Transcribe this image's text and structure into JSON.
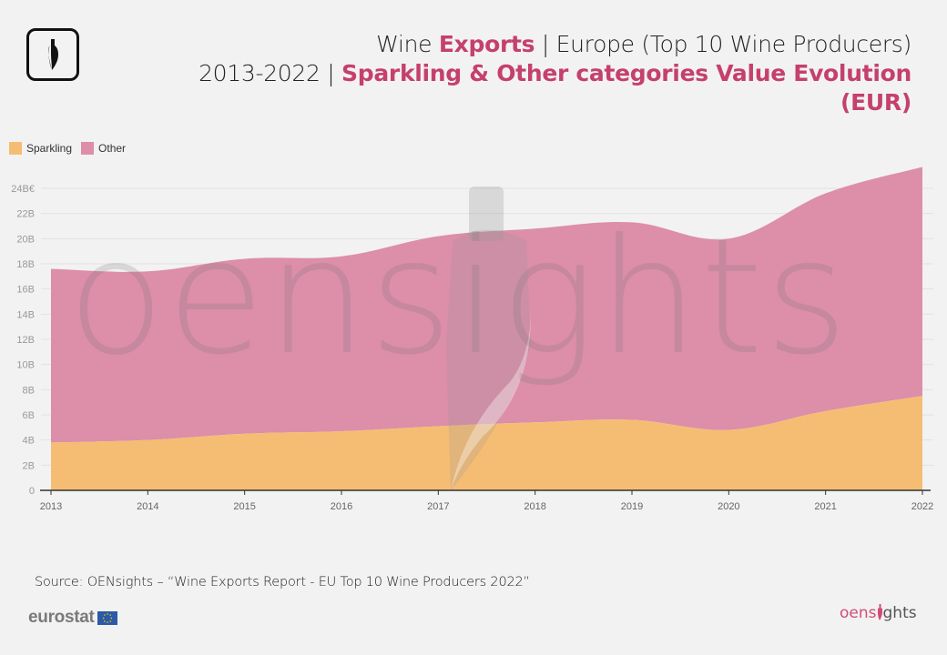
{
  "header": {
    "title_line1_prefix": "Wine ",
    "title_line1_highlight": "Exports",
    "title_line1_suffix": " | Europe (Top 10 Wine Producers)",
    "title_line2_prefix": "2013-2022 | ",
    "title_line2_highlight": "Sparkling & Other categories Value Evolution",
    "title_line3_highlight": "(EUR)"
  },
  "legend": {
    "items": [
      {
        "label": "Sparkling",
        "color": "#f5bd74"
      },
      {
        "label": "Other",
        "color": "#dd8ea9"
      }
    ]
  },
  "footer": {
    "source": "Source: OENsights – “Wine Exports Report - EU Top 10 Wine Producers 2022”",
    "eurostat_label": "eurostat",
    "brand_part1": "oens",
    "brand_part2": "ghts"
  },
  "watermark": "oensights",
  "colors": {
    "accent": "#c5406d",
    "sparkling": "#f5bd74",
    "other": "#dd8ea9",
    "background": "#f2f2f2"
  },
  "chart_data": {
    "type": "area",
    "stacked": true,
    "title": "Wine Exports | Europe (Top 10 Wine Producers) 2013-2022 | Sparkling & Other categories Value Evolution (EUR)",
    "xlabel": "",
    "ylabel": "",
    "x": [
      "2013",
      "2014",
      "2015",
      "2016",
      "2017",
      "2018",
      "2019",
      "2020",
      "2021",
      "2022"
    ],
    "series": [
      {
        "name": "Sparkling",
        "values": [
          3.8,
          4.0,
          4.5,
          4.7,
          5.1,
          5.4,
          5.6,
          4.8,
          6.3,
          7.5
        ]
      },
      {
        "name": "Other",
        "values": [
          13.8,
          13.4,
          13.9,
          13.9,
          15.1,
          15.4,
          15.7,
          15.2,
          17.3,
          18.2
        ]
      }
    ],
    "units": "Billion EUR",
    "ylim": [
      0,
      24
    ],
    "yticks": [
      "0",
      "2B",
      "4B",
      "6B",
      "8B",
      "10B",
      "12B",
      "14B",
      "16B",
      "18B",
      "20B",
      "22B",
      "24B€"
    ],
    "grid": true,
    "legend_position": "top-left"
  }
}
